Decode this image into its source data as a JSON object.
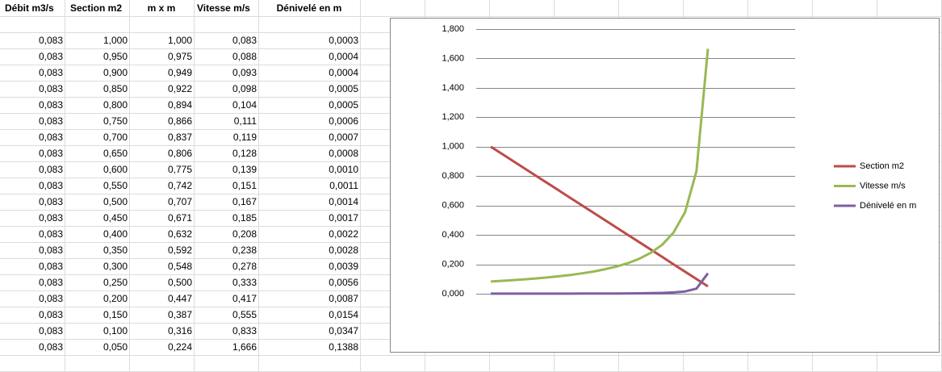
{
  "table": {
    "headers": [
      "Débit m3/s",
      "Section m2",
      "m x m",
      "Vitesse m/s",
      "Dénivelé en m"
    ],
    "rows": [
      [
        "0,083",
        "1,000",
        "1,000",
        "0,083",
        "0,0003"
      ],
      [
        "0,083",
        "0,950",
        "0,975",
        "0,088",
        "0,0004"
      ],
      [
        "0,083",
        "0,900",
        "0,949",
        "0,093",
        "0,0004"
      ],
      [
        "0,083",
        "0,850",
        "0,922",
        "0,098",
        "0,0005"
      ],
      [
        "0,083",
        "0,800",
        "0,894",
        "0,104",
        "0,0005"
      ],
      [
        "0,083",
        "0,750",
        "0,866",
        "0,111",
        "0,0006"
      ],
      [
        "0,083",
        "0,700",
        "0,837",
        "0,119",
        "0,0007"
      ],
      [
        "0,083",
        "0,650",
        "0,806",
        "0,128",
        "0,0008"
      ],
      [
        "0,083",
        "0,600",
        "0,775",
        "0,139",
        "0,0010"
      ],
      [
        "0,083",
        "0,550",
        "0,742",
        "0,151",
        "0,0011"
      ],
      [
        "0,083",
        "0,500",
        "0,707",
        "0,167",
        "0,0014"
      ],
      [
        "0,083",
        "0,450",
        "0,671",
        "0,185",
        "0,0017"
      ],
      [
        "0,083",
        "0,400",
        "0,632",
        "0,208",
        "0,0022"
      ],
      [
        "0,083",
        "0,350",
        "0,592",
        "0,238",
        "0,0028"
      ],
      [
        "0,083",
        "0,300",
        "0,548",
        "0,278",
        "0,0039"
      ],
      [
        "0,083",
        "0,250",
        "0,500",
        "0,333",
        "0,0056"
      ],
      [
        "0,083",
        "0,200",
        "0,447",
        "0,417",
        "0,0087"
      ],
      [
        "0,083",
        "0,150",
        "0,387",
        "0,555",
        "0,0154"
      ],
      [
        "0,083",
        "0,100",
        "0,316",
        "0,833",
        "0,0347"
      ],
      [
        "0,083",
        "0,050",
        "0,224",
        "1,666",
        "0,1388"
      ]
    ]
  },
  "chart_data": {
    "type": "line",
    "grid": true,
    "legend": "right",
    "ylim": [
      0,
      1.8
    ],
    "yticks": [
      {
        "value": 0,
        "label": "0,000"
      },
      {
        "value": 0.2,
        "label": "0,200"
      },
      {
        "value": 0.4,
        "label": "0,400"
      },
      {
        "value": 0.6,
        "label": "0,600"
      },
      {
        "value": 0.8,
        "label": "0,800"
      },
      {
        "value": 1,
        "label": "1,000"
      },
      {
        "value": 1.2,
        "label": "1,200"
      },
      {
        "value": 1.4,
        "label": "1,400"
      },
      {
        "value": 1.6,
        "label": "1,600"
      },
      {
        "value": 1.8,
        "label": "1,800"
      }
    ],
    "series": [
      {
        "name": "Section m2",
        "color": "#be4b48",
        "values": [
          1,
          0.95,
          0.9,
          0.85,
          0.8,
          0.75,
          0.7,
          0.65,
          0.6,
          0.55,
          0.5,
          0.45,
          0.4,
          0.35,
          0.3,
          0.25,
          0.2,
          0.15,
          0.1,
          0.05
        ]
      },
      {
        "name": "Vitesse m/s",
        "color": "#98b954",
        "values": [
          0.083,
          0.088,
          0.093,
          0.098,
          0.104,
          0.111,
          0.119,
          0.128,
          0.139,
          0.151,
          0.167,
          0.185,
          0.208,
          0.238,
          0.278,
          0.333,
          0.417,
          0.555,
          0.833,
          1.666
        ]
      },
      {
        "name": "Dénivelé en m",
        "color": "#7d60a0",
        "values": [
          0.0003,
          0.0004,
          0.0004,
          0.0005,
          0.0005,
          0.0006,
          0.0007,
          0.0008,
          0.001,
          0.0011,
          0.0014,
          0.0017,
          0.0022,
          0.0028,
          0.0039,
          0.0056,
          0.0087,
          0.0154,
          0.0347,
          0.1388
        ]
      }
    ]
  }
}
